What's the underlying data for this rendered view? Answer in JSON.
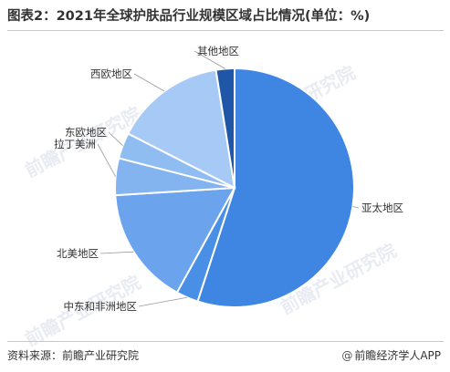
{
  "header": {
    "title": "图表2：2021年全球护肤品行业规模区域占比情况(单位：%)"
  },
  "footer": {
    "source": "资料来源：前瞻产业研究院",
    "brand": "前瞻经济学人APP",
    "brand_icon": "at-icon"
  },
  "watermark": {
    "text": "前瞻产业研究院"
  },
  "chart_data": {
    "type": "pie",
    "title": "",
    "start_angle_deg": 0,
    "direction": "clockwise",
    "slices": [
      {
        "label": "亚太地区",
        "value": 55,
        "color": "#3f86e3"
      },
      {
        "label": "中东和非洲地区",
        "value": 3,
        "color": "#4a8fe6"
      },
      {
        "label": "北美地区",
        "value": 16,
        "color": "#6ba4ec"
      },
      {
        "label": "拉丁美洲",
        "value": 5,
        "color": "#83b4f0"
      },
      {
        "label": "东欧地区",
        "value": 3.5,
        "color": "#8fbdf2"
      },
      {
        "label": "西欧地区",
        "value": 15,
        "color": "#a6caf5"
      },
      {
        "label": "其他地区",
        "value": 2.5,
        "color": "#1f56a8"
      }
    ]
  }
}
